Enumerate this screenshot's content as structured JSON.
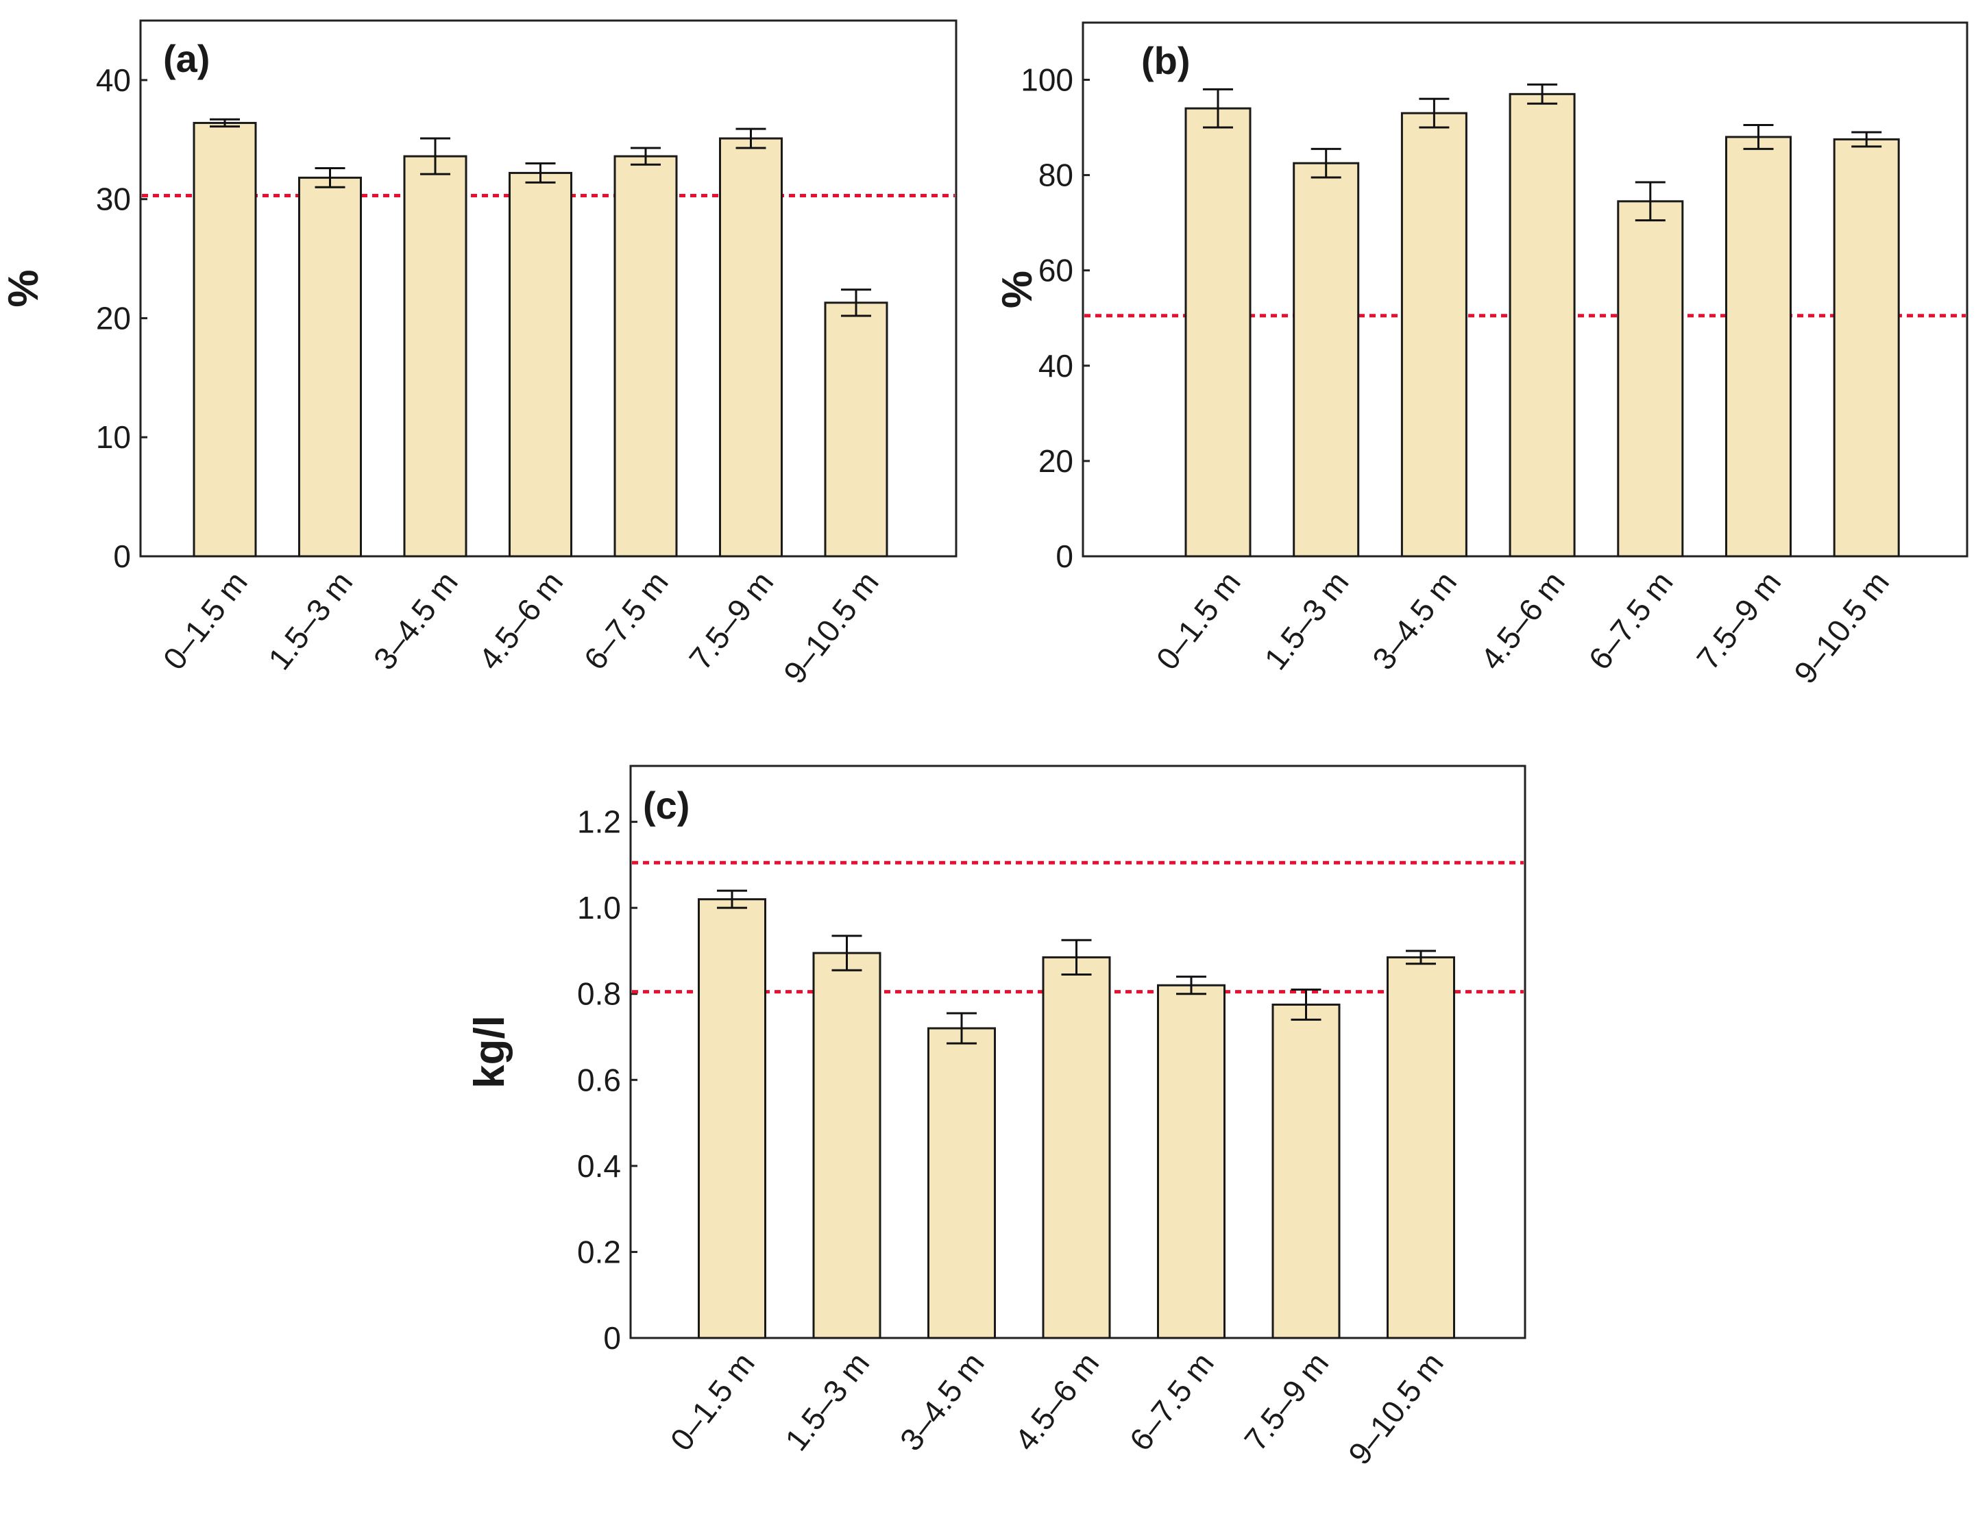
{
  "colors": {
    "bar_fill": "#f6e6bb",
    "reference_line": "#e8102e"
  },
  "chart_data": [
    {
      "type": "bar",
      "panel_label": "(a)",
      "ylabel": "%",
      "ylim": [
        0,
        45
      ],
      "yticks": [
        0,
        10,
        20,
        30,
        40
      ],
      "categories": [
        "0–1.5 m",
        "1.5–3 m",
        "3–4.5 m",
        "4.5–6 m",
        "6–7.5 m",
        "7.5–9 m",
        "9–10.5 m"
      ],
      "values": [
        36.4,
        31.8,
        33.6,
        32.2,
        33.6,
        35.1,
        21.3
      ],
      "errors": [
        0.3,
        0.8,
        1.5,
        0.8,
        0.7,
        0.8,
        1.1
      ],
      "reference_lines": [
        30.3
      ]
    },
    {
      "type": "bar",
      "panel_label": "(b)",
      "ylabel": "%",
      "ylim": [
        0,
        112
      ],
      "yticks": [
        0,
        20,
        40,
        60,
        80,
        100
      ],
      "categories": [
        "0–1.5 m",
        "1.5–3 m",
        "3–4.5 m",
        "4.5–6 m",
        "6–7.5 m",
        "7.5–9 m",
        "9–10.5 m"
      ],
      "values": [
        94,
        82.5,
        93,
        97,
        74.5,
        88,
        87.5
      ],
      "errors": [
        4,
        3,
        3,
        2,
        4,
        2.5,
        1.5
      ],
      "reference_lines": [
        50.5
      ]
    },
    {
      "type": "bar",
      "panel_label": "(c)",
      "ylabel": "kg/l",
      "ylim": [
        0,
        1.33
      ],
      "yticks": [
        "0",
        "0.2",
        "0.4",
        "0.6",
        "0.8",
        "1.0",
        "1.2"
      ],
      "categories": [
        "0–1.5 m",
        "1.5–3 m",
        "3–4.5 m",
        "4.5–6 m",
        "6–7.5 m",
        "7.5–9 m",
        "9–10.5 m"
      ],
      "values": [
        1.02,
        0.895,
        0.72,
        0.885,
        0.82,
        0.775,
        0.885
      ],
      "errors": [
        0.02,
        0.04,
        0.035,
        0.04,
        0.02,
        0.035,
        0.015
      ],
      "reference_lines": [
        1.105,
        0.805
      ]
    }
  ]
}
